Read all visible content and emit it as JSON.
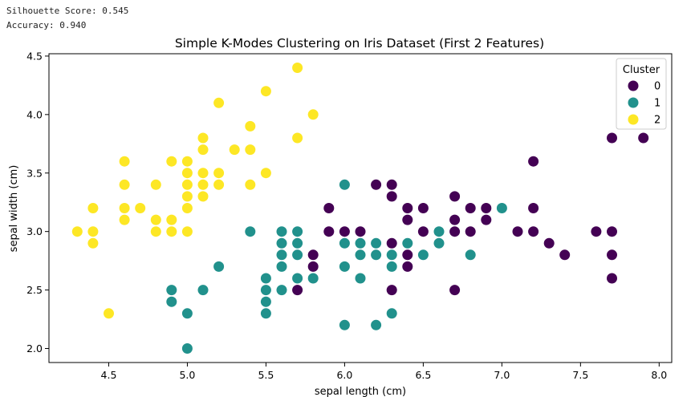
{
  "metrics": {
    "silhouette": "Silhouette Score: 0.545",
    "accuracy": "Accuracy: 0.940"
  },
  "chart_data": {
    "type": "scatter",
    "title": "Simple K-Modes Clustering on Iris Dataset (First 2 Features)",
    "xlabel": "sepal length (cm)",
    "ylabel": "sepal width (cm)",
    "xlim": [
      4.12,
      8.08
    ],
    "ylim": [
      1.88,
      4.52
    ],
    "xticks": [
      "4.5",
      "5.0",
      "5.5",
      "6.0",
      "6.5",
      "7.0",
      "7.5",
      "8.0"
    ],
    "yticks": [
      "2.0",
      "2.5",
      "3.0",
      "3.5",
      "4.0",
      "4.5"
    ],
    "grid": false,
    "legend": {
      "title": "Cluster",
      "placement": "top-right"
    },
    "series": [
      {
        "name": "0",
        "color": "#440154",
        "points": [
          [
            5.7,
            2.5
          ],
          [
            5.8,
            2.7
          ],
          [
            5.8,
            2.8
          ],
          [
            5.9,
            3.0
          ],
          [
            5.9,
            3.2
          ],
          [
            6.0,
            3.0
          ],
          [
            6.1,
            3.0
          ],
          [
            6.2,
            3.4
          ],
          [
            6.3,
            2.5
          ],
          [
            6.3,
            2.9
          ],
          [
            6.3,
            3.3
          ],
          [
            6.3,
            3.4
          ],
          [
            6.4,
            2.7
          ],
          [
            6.4,
            2.8
          ],
          [
            6.4,
            3.1
          ],
          [
            6.4,
            3.2
          ],
          [
            6.5,
            3.0
          ],
          [
            6.5,
            3.2
          ],
          [
            6.7,
            2.5
          ],
          [
            6.7,
            3.0
          ],
          [
            6.7,
            3.1
          ],
          [
            6.7,
            3.3
          ],
          [
            6.8,
            3.0
          ],
          [
            6.8,
            3.2
          ],
          [
            6.9,
            3.1
          ],
          [
            6.9,
            3.2
          ],
          [
            7.1,
            3.0
          ],
          [
            7.2,
            3.0
          ],
          [
            7.2,
            3.2
          ],
          [
            7.2,
            3.6
          ],
          [
            7.3,
            2.9
          ],
          [
            7.4,
            2.8
          ],
          [
            7.6,
            3.0
          ],
          [
            7.7,
            2.6
          ],
          [
            7.7,
            2.8
          ],
          [
            7.7,
            3.0
          ],
          [
            7.7,
            3.8
          ],
          [
            7.9,
            3.8
          ]
        ]
      },
      {
        "name": "1",
        "color": "#21918c",
        "points": [
          [
            4.9,
            2.4
          ],
          [
            4.9,
            2.5
          ],
          [
            5.0,
            2.0
          ],
          [
            5.0,
            2.3
          ],
          [
            5.1,
            2.5
          ],
          [
            5.2,
            2.7
          ],
          [
            5.4,
            3.0
          ],
          [
            5.5,
            2.3
          ],
          [
            5.5,
            2.4
          ],
          [
            5.5,
            2.5
          ],
          [
            5.5,
            2.6
          ],
          [
            5.6,
            2.5
          ],
          [
            5.6,
            2.7
          ],
          [
            5.6,
            2.8
          ],
          [
            5.6,
            2.9
          ],
          [
            5.6,
            3.0
          ],
          [
            5.7,
            2.6
          ],
          [
            5.7,
            2.8
          ],
          [
            5.7,
            2.9
          ],
          [
            5.7,
            3.0
          ],
          [
            5.8,
            2.6
          ],
          [
            6.0,
            2.2
          ],
          [
            6.0,
            2.7
          ],
          [
            6.0,
            2.9
          ],
          [
            6.0,
            3.4
          ],
          [
            6.1,
            2.6
          ],
          [
            6.1,
            2.8
          ],
          [
            6.1,
            2.9
          ],
          [
            6.2,
            2.2
          ],
          [
            6.2,
            2.8
          ],
          [
            6.2,
            2.9
          ],
          [
            6.3,
            2.3
          ],
          [
            6.3,
            2.7
          ],
          [
            6.3,
            2.8
          ],
          [
            6.4,
            2.9
          ],
          [
            6.5,
            2.8
          ],
          [
            6.6,
            2.9
          ],
          [
            6.6,
            3.0
          ],
          [
            6.8,
            2.8
          ],
          [
            7.0,
            3.2
          ]
        ]
      },
      {
        "name": "2",
        "color": "#fde725",
        "points": [
          [
            4.3,
            3.0
          ],
          [
            4.4,
            2.9
          ],
          [
            4.4,
            3.0
          ],
          [
            4.4,
            3.2
          ],
          [
            4.5,
            2.3
          ],
          [
            4.6,
            3.1
          ],
          [
            4.6,
            3.2
          ],
          [
            4.6,
            3.4
          ],
          [
            4.6,
            3.6
          ],
          [
            4.7,
            3.2
          ],
          [
            4.8,
            3.0
          ],
          [
            4.8,
            3.1
          ],
          [
            4.8,
            3.4
          ],
          [
            4.9,
            3.0
          ],
          [
            4.9,
            3.1
          ],
          [
            4.9,
            3.6
          ],
          [
            5.0,
            3.0
          ],
          [
            5.0,
            3.2
          ],
          [
            5.0,
            3.3
          ],
          [
            5.0,
            3.4
          ],
          [
            5.0,
            3.5
          ],
          [
            5.0,
            3.6
          ],
          [
            5.1,
            3.3
          ],
          [
            5.1,
            3.4
          ],
          [
            5.1,
            3.5
          ],
          [
            5.1,
            3.7
          ],
          [
            5.1,
            3.8
          ],
          [
            5.2,
            3.4
          ],
          [
            5.2,
            3.5
          ],
          [
            5.2,
            4.1
          ],
          [
            5.3,
            3.7
          ],
          [
            5.4,
            3.4
          ],
          [
            5.4,
            3.7
          ],
          [
            5.4,
            3.9
          ],
          [
            5.5,
            3.5
          ],
          [
            5.5,
            4.2
          ],
          [
            5.7,
            3.8
          ],
          [
            5.7,
            4.4
          ],
          [
            5.8,
            4.0
          ]
        ]
      }
    ]
  }
}
